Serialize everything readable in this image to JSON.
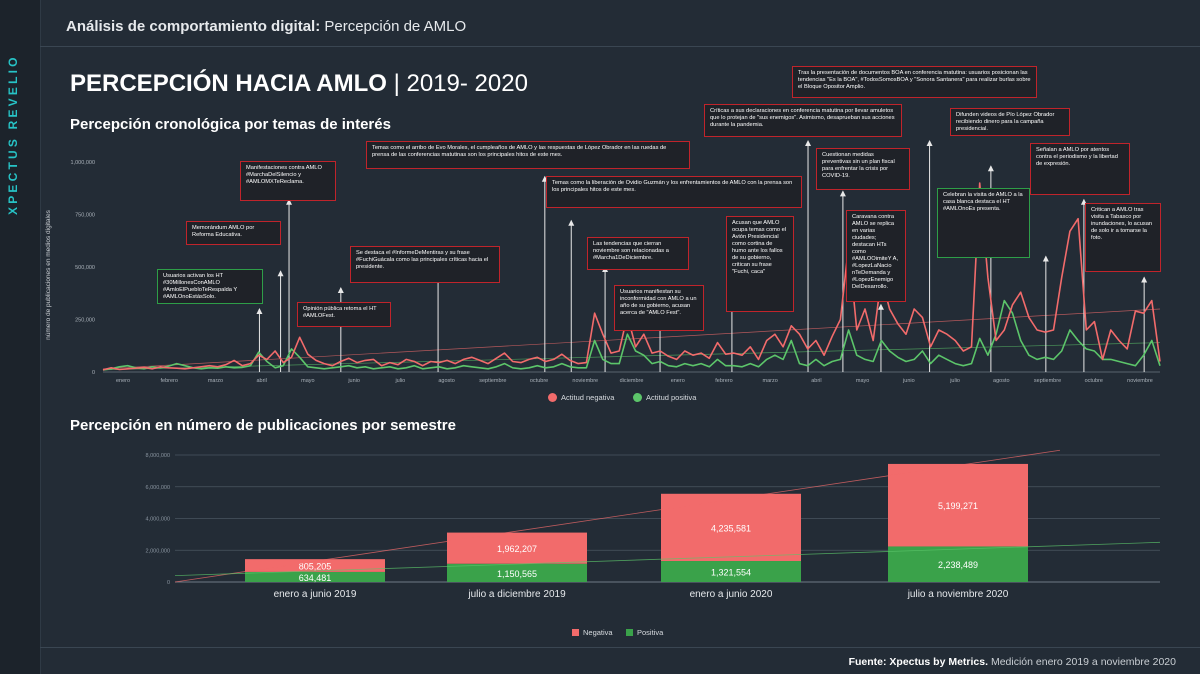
{
  "brand": "XPECTUS REVELIO",
  "breadcrumb": {
    "bold": "Análisis de comportamiento digital:",
    "rest": " Percepción de AMLO"
  },
  "title": {
    "main": "PERCEPCIÓN HACIA AMLO",
    "sep": " | ",
    "years": "2019- 2020"
  },
  "section1_title": "Percepción cronológica por temas de interés",
  "section2_title": "Percepción en número de publicaciones por semestre",
  "footer": {
    "bold": "Fuente: Xpectus by Metrics.",
    "rest": " Medición enero 2019 a noviembre 2020"
  },
  "colors": {
    "negative": "#f26b6b",
    "positive": "#5cc56a",
    "pos_bar": "#3aa24a",
    "neg_bar": "#f26b6b",
    "annotation_red": "#c0242b",
    "annotation_green": "#2e9e48",
    "brand": "#27c3c6",
    "bg": "#232c36"
  },
  "annotations": [
    {
      "text": "Usuarios activan los HT #30MillonesConAMLO #AmloElPuebloTeRespalda Y #AMLOnoEstásSolo.",
      "color": "green"
    },
    {
      "text": "Memorándum AMLO por Reforma Educativa.",
      "color": "red"
    },
    {
      "text": "Manifestaciones contra AMLO #MarchaDelSilencio y #AMLOMXTeReclama.",
      "color": "red"
    },
    {
      "text": "Opinión pública retoma el HT #AMLOFest.",
      "color": "red"
    },
    {
      "text": "Se destaca el #InformeDeMentiras y su frase #FuchiGuácala como las principales críticas hacia el presidente.",
      "color": "red"
    },
    {
      "text": "Temas como el arribo de Evo Morales, el cumpleaños de AMLO y las respuestas de López Obrador en las ruedas de prensa de las conferencias matutinas son los principales hitos de este mes.",
      "color": "red"
    },
    {
      "text": "Temas como la liberación de Ovidio Guzmán y los enfrentamientos de AMLO con la prensa son los principales hitos de este mes.",
      "color": "red"
    },
    {
      "text": "Las tendencias que cierran noviembre son relacionadas a #Marcha1DeDiciembre.",
      "color": "red"
    },
    {
      "text": "Usuarios manifiestan su inconformidad con AMLO a un año de su gobierno, acusan acerca de \"AMLO Fest\".",
      "color": "red"
    },
    {
      "text": "Acusan que AMLO ocupa temas como el Avión Presidencial como cortina de humo ante los fallos de su gobierno, critican su frase \"Fuchi, caca\"",
      "color": "red"
    },
    {
      "text": "Críticas a sus declaraciones en conferencia matutina por llevar amuletos que lo protejan de \"sus enemigos\". Asimismo, desaprueban sus acciones durante la pandemia.",
      "color": "red"
    },
    {
      "text": "Cuestionan medidas preventivas sin un plan fiscal para enfrentar la crisis por COVID-19.",
      "color": "red"
    },
    {
      "text": "Tras la presentación de documentos BOA en conferencia matutina: usuarios posicionan las tendencias \"Es la BOA\", #TodosSomosBOA y \"Sonora Santanera\" para realizar burlas sobre el Bloque Opositor Amplio.",
      "color": "red"
    },
    {
      "text": "Caravana contra AMLO se replica en varias ciudades; destacan HTs como #AMLOOimiteY A, #LopezLaNacio nTeDemanda y #LopezEnemigo DelDesarrollo.",
      "color": "red"
    },
    {
      "text": "Difunden videos de Pío López Obrador recibiendo dinero para la campaña presidencial.",
      "color": "red"
    },
    {
      "text": "Celebran la visita de AMLO a la casa blanca destaca el HT #AMLOnoEs presenta.",
      "color": "green"
    },
    {
      "text": "Señalan a AMLO por atentos contra el periodismo y la libertad de expresión.",
      "color": "red"
    },
    {
      "text": "Critican a AMLO tras visita a Tabasco por inundaciones, lo acusan de solo ir a tomarse la foto.",
      "color": "red"
    }
  ],
  "chart_data": [
    {
      "type": "line",
      "title": "Percepción cronológica por temas de interés",
      "ylabel": "número de publicaciones en medios digitales",
      "ylim": [
        0,
        1000000
      ],
      "yticks": [
        "0",
        "250,000",
        "500,000",
        "750,000",
        "1,000,000"
      ],
      "month_labels": [
        "enero",
        "febrero",
        "marzo",
        "abril",
        "mayo",
        "junio",
        "julio",
        "agosto",
        "septiembre",
        "octubre",
        "noviembre",
        "diciembre",
        "enero",
        "febrero",
        "marzo",
        "abril",
        "mayo",
        "junio",
        "julio",
        "agosto",
        "septiembre",
        "octubre",
        "noviembre"
      ],
      "series": [
        {
          "name": "Actitud negativa",
          "values": [
            10000,
            20000,
            12000,
            15000,
            18000,
            22000,
            15000,
            25000,
            20000,
            18000,
            15000,
            20000,
            25000,
            30000,
            25000,
            35000,
            55000,
            30000,
            40000,
            80000,
            60000,
            100000,
            45000,
            70000,
            165000,
            85000,
            55000,
            40000,
            30000,
            50000,
            65000,
            45000,
            55000,
            60000,
            30000,
            45000,
            35000,
            60000,
            50000,
            30000,
            50000,
            45000,
            55000,
            40000,
            60000,
            70000,
            55000,
            40000,
            65000,
            90000,
            50000,
            45000,
            60000,
            70000,
            50000,
            60000,
            85000,
            55000,
            40000,
            45000,
            280000,
            180000,
            90000,
            100000,
            270000,
            120000,
            180000,
            90000,
            100000,
            75000,
            60000,
            100000,
            80000,
            90000,
            65000,
            140000,
            85000,
            90000,
            80000,
            120000,
            60000,
            150000,
            180000,
            120000,
            220000,
            180000,
            110000,
            150000,
            80000,
            170000,
            250000,
            600000,
            200000,
            300000,
            150000,
            450000,
            300000,
            230000,
            180000,
            300000,
            260000,
            120000,
            200000,
            180000,
            150000,
            100000,
            120000,
            900000,
            450000,
            150000,
            200000,
            320000,
            380000,
            260000,
            200000,
            190000,
            200000,
            450000,
            670000,
            730000,
            200000,
            240000,
            60000,
            200000,
            150000,
            110000,
            290000,
            280000,
            340000,
            50000
          ]
        },
        {
          "name": "Actitud positiva",
          "values": [
            10000,
            15000,
            25000,
            30000,
            20000,
            15000,
            25000,
            20000,
            28000,
            40000,
            30000,
            20000,
            15000,
            20000,
            18000,
            25000,
            20000,
            22000,
            30000,
            95000,
            50000,
            20000,
            30000,
            110000,
            70000,
            25000,
            20000,
            15000,
            20000,
            25000,
            30000,
            20000,
            25000,
            15000,
            20000,
            25000,
            15000,
            20000,
            30000,
            15000,
            20000,
            25000,
            15000,
            20000,
            30000,
            25000,
            20000,
            15000,
            25000,
            40000,
            20000,
            15000,
            20000,
            30000,
            20000,
            25000,
            40000,
            25000,
            20000,
            20000,
            150000,
            60000,
            40000,
            40000,
            180000,
            100000,
            80000,
            40000,
            50000,
            30000,
            25000,
            40000,
            30000,
            40000,
            25000,
            60000,
            30000,
            30000,
            25000,
            40000,
            25000,
            60000,
            80000,
            60000,
            150000,
            40000,
            30000,
            60000,
            30000,
            50000,
            60000,
            200000,
            80000,
            60000,
            50000,
            150000,
            100000,
            70000,
            50000,
            60000,
            100000,
            40000,
            80000,
            60000,
            40000,
            30000,
            40000,
            160000,
            80000,
            180000,
            340000,
            280000,
            150000,
            80000,
            60000,
            70000,
            60000,
            100000,
            200000,
            150000,
            110000,
            100000,
            60000,
            60000,
            50000,
            40000,
            30000,
            80000,
            150000,
            30000
          ]
        }
      ]
    },
    {
      "type": "bar",
      "title": "Percepción en número de publicaciones por semestre",
      "stacked": true,
      "categories": [
        "enero a junio 2019",
        "julio a diciembre 2019",
        "enero a junio 2020",
        "julio a noviembre 2020"
      ],
      "yticks": [
        "0",
        "2,000,000",
        "4,000,000",
        "6,000,000",
        "8,000,000"
      ],
      "ylim": [
        0,
        8000000
      ],
      "series": [
        {
          "name": "Positiva",
          "values": [
            634481,
            1150565,
            1321554,
            2238489
          ],
          "labels": [
            "634,481",
            "1,150,565",
            "1,321,554",
            "2,238,489"
          ]
        },
        {
          "name": "Negativa",
          "values": [
            805205,
            1962207,
            4235581,
            5199271
          ],
          "labels": [
            "805,205",
            "1,962,207",
            "4,235,581",
            "5,199,271"
          ]
        }
      ],
      "legend": [
        "Negativa",
        "Positiva"
      ]
    }
  ]
}
